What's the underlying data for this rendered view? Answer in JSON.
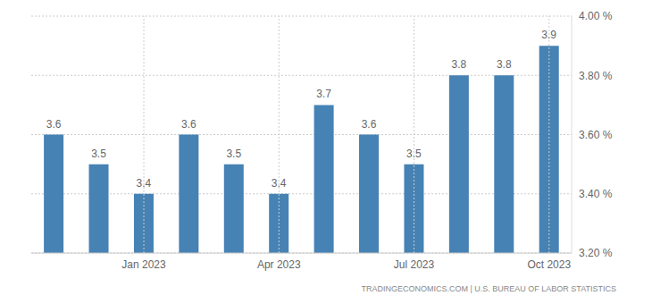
{
  "chart_data": {
    "type": "bar",
    "categories": [
      null,
      null,
      "Jan 2023",
      null,
      null,
      "Apr 2023",
      null,
      null,
      "Jul 2023",
      null,
      null,
      "Oct 2023"
    ],
    "values": [
      3.6,
      3.5,
      3.4,
      3.6,
      3.5,
      3.4,
      3.7,
      3.6,
      3.5,
      3.8,
      3.8,
      3.9
    ],
    "color": "#4682b4",
    "ylim": [
      3.2,
      4.0
    ],
    "yticks": [
      {
        "value": 3.2,
        "label": "3.20 %"
      },
      {
        "value": 3.4,
        "label": "3.40 %"
      },
      {
        "value": 3.6,
        "label": "3.60 %"
      },
      {
        "value": 3.8,
        "label": "3.80 %"
      },
      {
        "value": 4.0,
        "label": "4.00 %"
      }
    ],
    "grid": true,
    "data_labels": true,
    "annotations": [
      "TRADINGECONOMICS.COM | U.S. BUREAU OF LABOR STATISTICS"
    ]
  }
}
